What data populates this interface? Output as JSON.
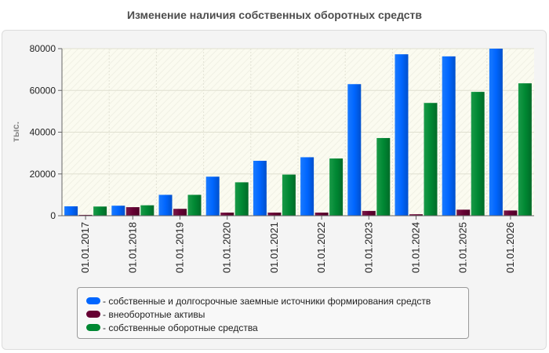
{
  "chart_data": {
    "type": "bar",
    "title": "Изменение наличия собственных оборотных средств",
    "ylabel": "тыс.",
    "xlabel": "",
    "ylim": [
      0,
      80000
    ],
    "yticks": [
      0,
      20000,
      40000,
      60000,
      80000
    ],
    "grid": true,
    "legend_position": "bottom",
    "categories": [
      "01.01.2017",
      "01.01.2018",
      "01.01.2019",
      "01.01.2020",
      "01.01.2021",
      "01.01.2022",
      "01.01.2023",
      "01.01.2024",
      "01.01.2025",
      "01.01.2026"
    ],
    "series": [
      {
        "name": "- собственные и долгосрочные заемные источники формирования средств",
        "color": "#0066ff",
        "values": [
          4500,
          4800,
          10000,
          18700,
          26300,
          28000,
          63000,
          77300,
          76300,
          80000
        ]
      },
      {
        "name": "- внеоборотные активы",
        "color": "#660033",
        "values": [
          400,
          4100,
          3300,
          1500,
          1500,
          1500,
          2300,
          700,
          2900,
          2500
        ]
      },
      {
        "name": "- собственные оборотные средства",
        "color": "#008833",
        "values": [
          4400,
          5000,
          10000,
          16000,
          19700,
          27400,
          37200,
          54000,
          59300,
          63400
        ]
      }
    ]
  }
}
